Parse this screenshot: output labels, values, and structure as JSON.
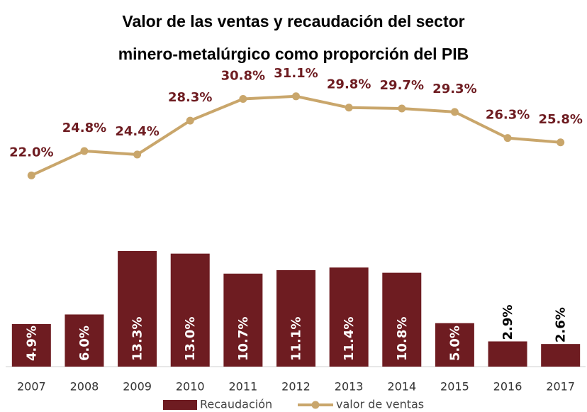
{
  "chart_data": {
    "type": "bar-line",
    "title": [
      "Valor de las ventas y recaudación del sector",
      "minero-metalúrgico como proporción del PIB"
    ],
    "categories": [
      "2007",
      "2008",
      "2009",
      "2010",
      "2011",
      "2012",
      "2013",
      "2014",
      "2015",
      "2016",
      "2017"
    ],
    "series": [
      {
        "name": "Recaudación",
        "type": "bar",
        "color": "#6e1c21",
        "values": [
          4.9,
          6.0,
          13.3,
          13.0,
          10.7,
          11.1,
          11.4,
          10.8,
          5.0,
          2.9,
          2.6
        ],
        "value_labels": [
          "4.9%",
          "6.0%",
          "13.3%",
          "13.0%",
          "10.7%",
          "11.1%",
          "11.4%",
          "10.8%",
          "5.0%",
          "2.9%",
          "2.6%"
        ]
      },
      {
        "name": "valor de ventas",
        "type": "line",
        "color": "#c9a66b",
        "values": [
          22.0,
          24.8,
          24.4,
          28.3,
          30.8,
          31.1,
          29.8,
          29.7,
          29.3,
          26.3,
          25.8
        ],
        "value_labels": [
          "22.0%",
          "24.8%",
          "24.4%",
          "28.3%",
          "30.8%",
          "31.1%",
          "29.8%",
          "29.7%",
          "29.3%",
          "26.3%",
          "25.8%"
        ]
      }
    ],
    "ylim": [
      0,
      35
    ],
    "legend": "bottom"
  }
}
